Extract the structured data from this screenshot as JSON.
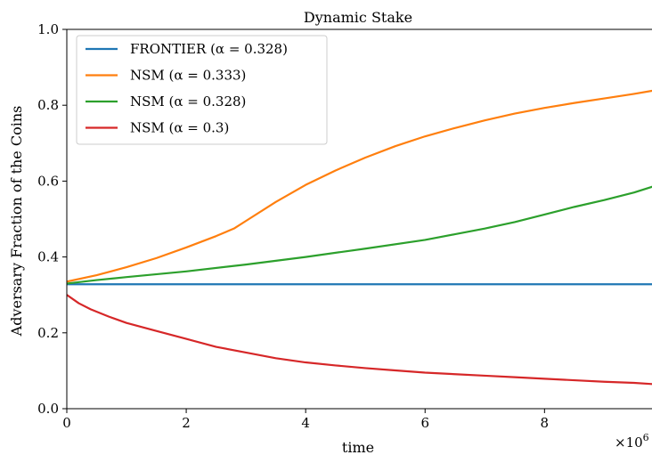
{
  "chart_data": {
    "type": "line",
    "title": "Dynamic Stake",
    "xlabel": "time",
    "ylabel": "Adversary Fraction of the Coins",
    "x_exponent_label": "×10",
    "x_exponent_power": "6",
    "xlim": [
      0,
      9800000
    ],
    "ylim": [
      0.0,
      1.0
    ],
    "x_ticks": [
      0,
      2000000,
      4000000,
      6000000,
      8000000
    ],
    "x_tick_labels": [
      "0",
      "2",
      "4",
      "6",
      "8"
    ],
    "y_ticks": [
      0.0,
      0.2,
      0.4,
      0.6,
      0.8,
      1.0
    ],
    "y_tick_labels": [
      "0.0",
      "0.2",
      "0.4",
      "0.6",
      "0.8",
      "1.0"
    ],
    "grid": false,
    "legend_position": "top-left",
    "series": [
      {
        "name": "FRONTIER (α = 0.328)",
        "color": "#1f77b4",
        "x": [
          0,
          9800000
        ],
        "values": [
          0.328,
          0.328
        ]
      },
      {
        "name": "NSM (α = 0.333)",
        "color": "#ff7f0e",
        "x": [
          0,
          500000,
          1000000,
          1500000,
          2000000,
          2500000,
          2800000,
          3000000,
          3500000,
          4000000,
          4500000,
          5000000,
          5500000,
          6000000,
          6500000,
          7000000,
          7500000,
          8000000,
          8500000,
          9000000,
          9500000,
          9800000
        ],
        "values": [
          0.335,
          0.352,
          0.373,
          0.397,
          0.425,
          0.455,
          0.475,
          0.495,
          0.545,
          0.59,
          0.628,
          0.662,
          0.692,
          0.718,
          0.74,
          0.76,
          0.778,
          0.793,
          0.806,
          0.818,
          0.83,
          0.838
        ]
      },
      {
        "name": "NSM (α = 0.328)",
        "color": "#2ca02c",
        "x": [
          0,
          500000,
          1000000,
          2000000,
          3000000,
          4000000,
          5000000,
          6000000,
          6500000,
          7000000,
          7500000,
          8000000,
          8500000,
          9000000,
          9500000,
          9800000
        ],
        "values": [
          0.33,
          0.339,
          0.347,
          0.362,
          0.38,
          0.4,
          0.422,
          0.445,
          0.46,
          0.475,
          0.492,
          0.512,
          0.532,
          0.55,
          0.57,
          0.585
        ]
      },
      {
        "name": "NSM (α = 0.3)",
        "color": "#d62728",
        "x": [
          0,
          200000,
          400000,
          700000,
          1000000,
          1500000,
          2000000,
          2500000,
          3000000,
          3500000,
          4000000,
          4500000,
          5000000,
          5500000,
          6000000,
          6500000,
          7000000,
          7500000,
          8000000,
          8500000,
          9000000,
          9500000,
          9800000
        ],
        "values": [
          0.3,
          0.278,
          0.262,
          0.243,
          0.226,
          0.205,
          0.184,
          0.163,
          0.148,
          0.133,
          0.122,
          0.114,
          0.107,
          0.101,
          0.095,
          0.091,
          0.087,
          0.083,
          0.079,
          0.075,
          0.071,
          0.068,
          0.065
        ]
      }
    ]
  }
}
